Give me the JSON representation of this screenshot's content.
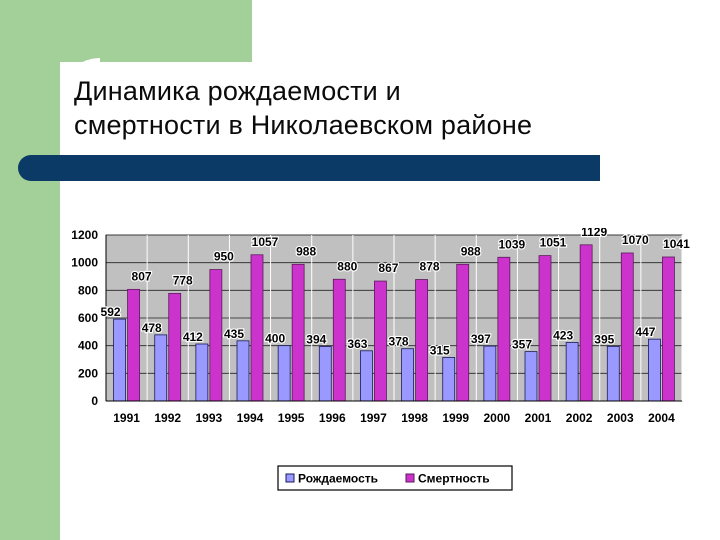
{
  "slide": {
    "title_line1": "Динамика рождаемости и",
    "title_line2": "смертности в Николаевском  районе",
    "colors": {
      "side_band": "#a3cf98",
      "title_bar": "#0b3a66",
      "plot_bg": "#c0c0c0",
      "births": "#9999ff",
      "deaths": "#cc33cc"
    }
  },
  "chart_data": {
    "type": "bar",
    "categories": [
      "1991",
      "1992",
      "1993",
      "1994",
      "1995",
      "1996",
      "1997",
      "1998",
      "1999",
      "2000",
      "2001",
      "2002",
      "2003",
      "2004"
    ],
    "series": [
      {
        "name": "Рождаемость",
        "color": "#9999ff",
        "values": [
          592,
          478,
          412,
          435,
          400,
          394,
          363,
          378,
          315,
          397,
          357,
          423,
          395,
          447
        ]
      },
      {
        "name": "Смертность",
        "color": "#cc33cc",
        "values": [
          807,
          778,
          950,
          1057,
          988,
          880,
          867,
          878,
          988,
          1039,
          1051,
          1129,
          1070,
          1041
        ]
      }
    ],
    "ylim": [
      0,
      1200
    ],
    "yticks": [
      0,
      200,
      400,
      600,
      800,
      1000,
      1200
    ],
    "grid": true,
    "legend_position": "bottom"
  }
}
